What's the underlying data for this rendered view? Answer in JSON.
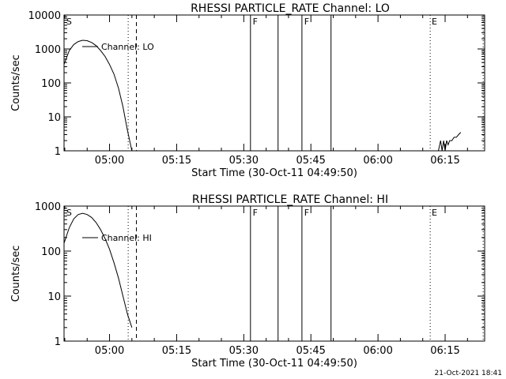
{
  "chart_data": [
    {
      "type": "line",
      "title": "RHESSI  PARTICLE_RATE  Channel:  LO",
      "xlabel": "Start Time (30-Oct-11 04:49:50)",
      "ylabel": "Counts/sec",
      "y_scale": "log",
      "ylim": [
        1,
        10000
      ],
      "xlim_minutes_after_start": [
        0,
        94
      ],
      "x_ticks": [
        "05:00",
        "05:15",
        "05:30",
        "05:45",
        "06:00",
        "06:15"
      ],
      "y_ticks": [
        "1",
        "10",
        "100",
        "1000",
        "10000"
      ],
      "legend": {
        "position": "top-left",
        "entries": [
          "Channel:  LO"
        ]
      },
      "markers_text": [
        "S",
        "F",
        "F",
        "E"
      ],
      "series": [
        {
          "name": "Channel:  LO",
          "x": [
            "04:49:50",
            "04:51:00",
            "04:52:00",
            "04:53:00",
            "04:54:00",
            "04:55:00",
            "04:56:00",
            "04:57:00",
            "04:58:00",
            "04:59:00",
            "05:00:00",
            "05:01:00",
            "05:02:00",
            "05:03:00",
            "05:04:00",
            "05:05:00"
          ],
          "y": [
            350,
            900,
            1350,
            1650,
            1800,
            1750,
            1550,
            1250,
            900,
            600,
            350,
            180,
            70,
            20,
            4,
            1
          ]
        },
        {
          "name": "",
          "x": [
            "06:13:30",
            "06:14:00",
            "06:14:20",
            "06:14:40",
            "06:15:00",
            "06:15:20",
            "06:15:40",
            "06:16:00",
            "06:16:30",
            "06:17:00",
            "06:17:30",
            "06:18:00",
            "06:18:30"
          ],
          "y": [
            1,
            2,
            1,
            2,
            1,
            2,
            1.5,
            2,
            2,
            2.5,
            2.5,
            3,
            3.5
          ]
        }
      ],
      "vertical_lines": [
        {
          "time": "05:04:10",
          "style": "dotted"
        },
        {
          "time": "05:06:00",
          "style": "dashed"
        },
        {
          "time": "05:31:30",
          "style": "solid"
        },
        {
          "time": "05:37:40",
          "style": "solid"
        },
        {
          "time": "05:43:00",
          "style": "solid"
        },
        {
          "time": "05:49:30",
          "style": "solid"
        },
        {
          "time": "06:11:40",
          "style": "dotted"
        },
        {
          "time": "06:23:30",
          "style": "dotted"
        }
      ]
    },
    {
      "type": "line",
      "title": "RHESSI  PARTICLE_RATE  Channel:  HI",
      "xlabel": "Start Time (30-Oct-11 04:49:50)",
      "ylabel": "Counts/sec",
      "y_scale": "log",
      "ylim": [
        1,
        1000
      ],
      "xlim_minutes_after_start": [
        0,
        94
      ],
      "x_ticks": [
        "05:00",
        "05:15",
        "05:30",
        "05:45",
        "06:00",
        "06:15"
      ],
      "y_ticks": [
        "1",
        "10",
        "100",
        "1000"
      ],
      "legend": {
        "position": "top-left",
        "entries": [
          "Channel:  HI"
        ]
      },
      "markers_text": [
        "S",
        "F",
        "F",
        "E"
      ],
      "series": [
        {
          "name": "Channel:  HI",
          "x": [
            "04:49:50",
            "04:51:00",
            "04:52:00",
            "04:53:00",
            "04:54:00",
            "04:55:00",
            "04:56:00",
            "04:57:00",
            "04:58:00",
            "04:59:00",
            "05:00:00",
            "05:01:00",
            "05:02:00",
            "05:03:00",
            "05:04:00",
            "05:05:00"
          ],
          "y": [
            150,
            330,
            520,
            650,
            690,
            650,
            560,
            430,
            300,
            190,
            110,
            55,
            25,
            10,
            4,
            2
          ]
        }
      ],
      "vertical_lines": [
        {
          "time": "05:04:10",
          "style": "dotted"
        },
        {
          "time": "05:06:00",
          "style": "dashed"
        },
        {
          "time": "05:31:30",
          "style": "solid"
        },
        {
          "time": "05:37:40",
          "style": "solid"
        },
        {
          "time": "05:43:00",
          "style": "solid"
        },
        {
          "time": "05:49:30",
          "style": "solid"
        },
        {
          "time": "06:11:40",
          "style": "dotted"
        },
        {
          "time": "06:23:30",
          "style": "dotted"
        }
      ]
    }
  ],
  "footer": {
    "timestamp": "21-Oct-2021 18:41"
  }
}
